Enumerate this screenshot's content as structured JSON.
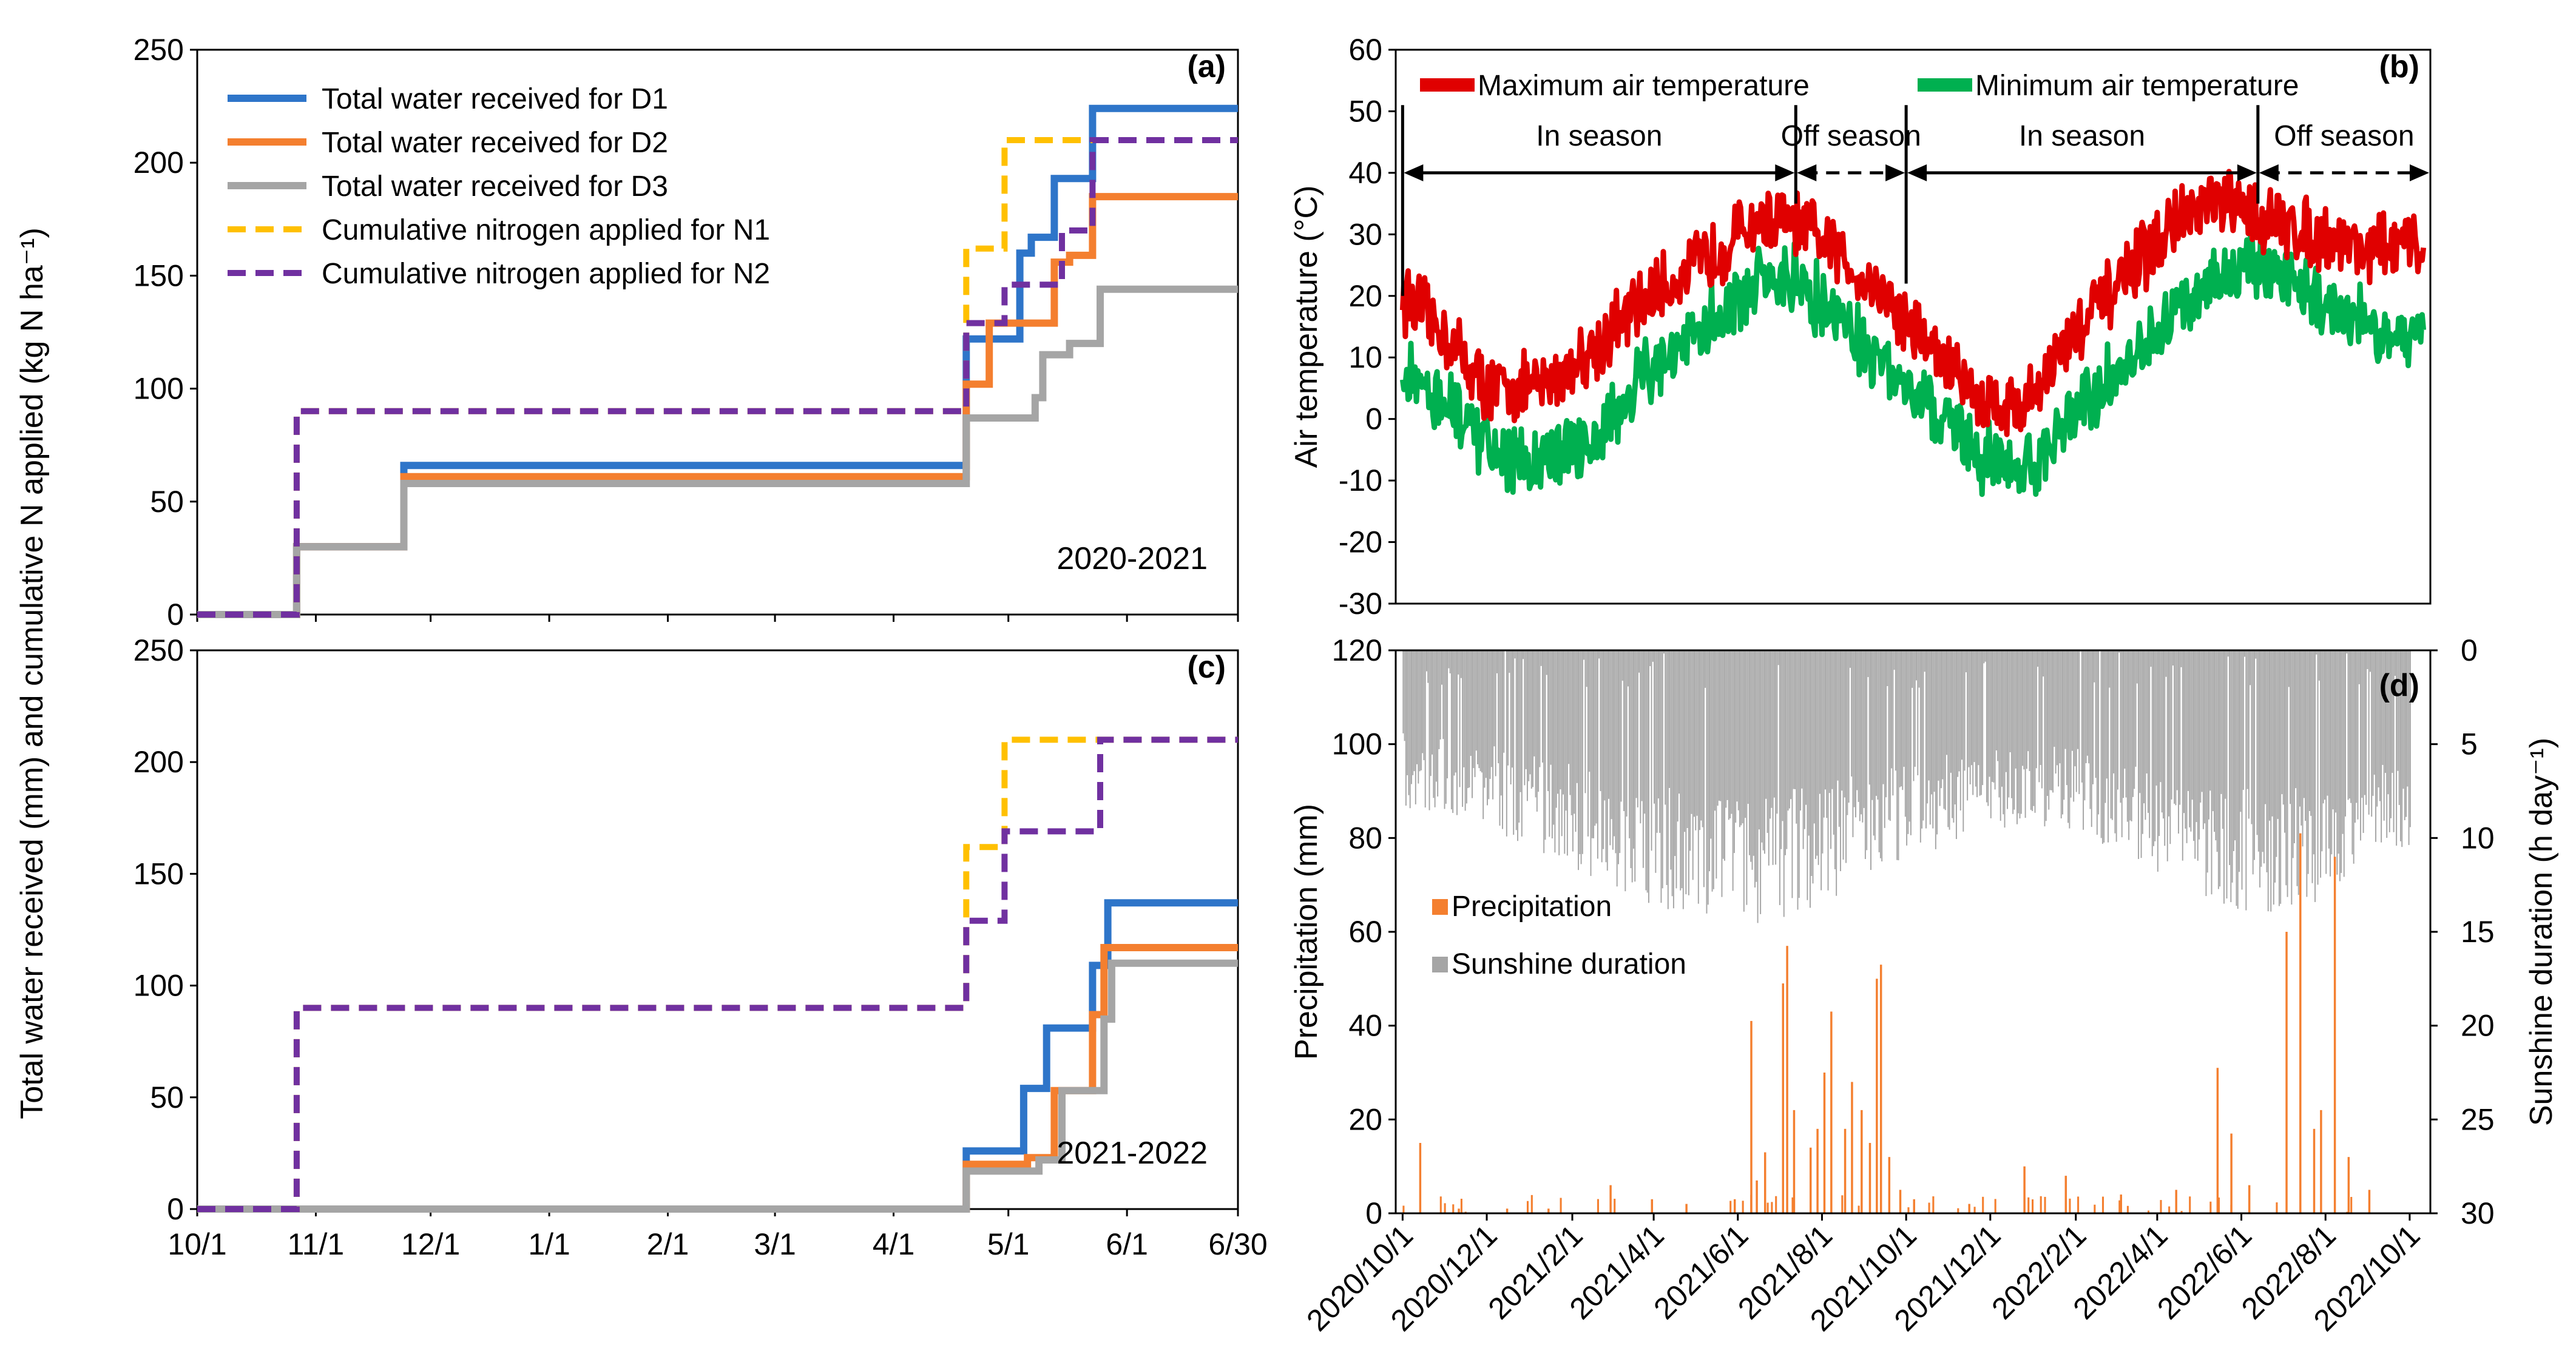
{
  "figure": {
    "shared_ylabel": "Total water received (mm) and cumulative N applied (kg N ha⁻¹)"
  },
  "chart_data": [
    {
      "id": "a",
      "panel_label": "(a)",
      "type": "line",
      "season_label": "2020-2021",
      "x_days": [
        0,
        272
      ],
      "xtick_labels": [
        "10/1",
        "11/1",
        "12/1",
        "1/1",
        "2/1",
        "3/1",
        "4/1",
        "5/1",
        "6/1",
        "6/30"
      ],
      "xtick_days": [
        0,
        31,
        61,
        92,
        123,
        151,
        182,
        212,
        243,
        272
      ],
      "ylim": [
        0,
        250
      ],
      "yticks": [
        0,
        50,
        100,
        150,
        200,
        250
      ],
      "series": [
        {
          "name": "Total water received for D1",
          "color": "#2E75C9",
          "dash": false,
          "points": [
            [
              0,
              0
            ],
            [
              26,
              0
            ],
            [
              26,
              30
            ],
            [
              54,
              30
            ],
            [
              54,
              66
            ],
            [
              201,
              66
            ],
            [
              201,
              122
            ],
            [
              215,
              122
            ],
            [
              215,
              160
            ],
            [
              218,
              160
            ],
            [
              218,
              167
            ],
            [
              224,
              167
            ],
            [
              224,
              193
            ],
            [
              234,
              193
            ],
            [
              234,
              224
            ],
            [
              272,
              224
            ]
          ]
        },
        {
          "name": "Total water received for D2",
          "color": "#F47F2F",
          "dash": false,
          "points": [
            [
              0,
              0
            ],
            [
              26,
              0
            ],
            [
              26,
              30
            ],
            [
              54,
              30
            ],
            [
              54,
              61
            ],
            [
              201,
              61
            ],
            [
              201,
              102
            ],
            [
              207,
              102
            ],
            [
              207,
              129
            ],
            [
              224,
              129
            ],
            [
              224,
              156
            ],
            [
              228,
              156
            ],
            [
              228,
              159
            ],
            [
              234,
              159
            ],
            [
              234,
              185
            ],
            [
              272,
              185
            ]
          ]
        },
        {
          "name": "Total water received for D3",
          "color": "#A5A5A5",
          "dash": false,
          "points": [
            [
              0,
              0
            ],
            [
              26,
              0
            ],
            [
              26,
              30
            ],
            [
              54,
              30
            ],
            [
              54,
              58
            ],
            [
              201,
              58
            ],
            [
              201,
              87
            ],
            [
              219,
              87
            ],
            [
              219,
              96
            ],
            [
              221,
              96
            ],
            [
              221,
              115
            ],
            [
              228,
              115
            ],
            [
              228,
              120
            ],
            [
              236,
              120
            ],
            [
              236,
              144
            ],
            [
              272,
              144
            ]
          ]
        },
        {
          "name": "Cumulative nitrogen applied for N1",
          "color": "#FFC000",
          "dash": true,
          "points": [
            [
              0,
              0
            ],
            [
              26,
              0
            ],
            [
              26,
              90
            ],
            [
              201,
              90
            ],
            [
              201,
              162
            ],
            [
              211,
              162
            ],
            [
              211,
              210
            ],
            [
              272,
              210
            ]
          ]
        },
        {
          "name": "Cumulative nitrogen applied for N2",
          "color": "#7030A0",
          "dash": true,
          "points": [
            [
              0,
              0
            ],
            [
              26,
              0
            ],
            [
              26,
              90
            ],
            [
              201,
              90
            ],
            [
              201,
              129
            ],
            [
              211,
              129
            ],
            [
              211,
              146
            ],
            [
              226,
              146
            ],
            [
              226,
              170
            ],
            [
              234,
              170
            ],
            [
              234,
              210
            ],
            [
              272,
              210
            ]
          ]
        }
      ]
    },
    {
      "id": "b",
      "panel_label": "(b)",
      "type": "line",
      "ylabel": "Air temperature (°C)",
      "ylim": [
        -30,
        60
      ],
      "yticks": [
        -30,
        -20,
        -10,
        0,
        10,
        20,
        30,
        40,
        50,
        60
      ],
      "x_days": [
        -5,
        745
      ],
      "legend": [
        "Maximum air temperature",
        "Minimum air temperature"
      ],
      "series_colors": [
        "#E00000",
        "#00B050"
      ],
      "series": [
        {
          "name": "Maximum air temperature",
          "color": "#E00000",
          "anchors": [
            [
              0,
              20
            ],
            [
              30,
              14
            ],
            [
              60,
              5
            ],
            [
              100,
              5
            ],
            [
              140,
              12
            ],
            [
              180,
              20
            ],
            [
              220,
              26
            ],
            [
              255,
              32
            ],
            [
              280,
              32
            ],
            [
              310,
              28
            ],
            [
              350,
              20
            ],
            [
              390,
              10
            ],
            [
              420,
              3
            ],
            [
              450,
              2
            ],
            [
              480,
              12
            ],
            [
              520,
              22
            ],
            [
              560,
              32
            ],
            [
              590,
              35
            ],
            [
              620,
              33
            ],
            [
              660,
              30
            ],
            [
              700,
              28
            ],
            [
              740,
              28
            ]
          ]
        },
        {
          "name": "Minimum air temperature",
          "color": "#00B050",
          "anchors": [
            [
              0,
              8
            ],
            [
              30,
              3
            ],
            [
              60,
              -5
            ],
            [
              100,
              -8
            ],
            [
              140,
              -2
            ],
            [
              180,
              8
            ],
            [
              220,
              15
            ],
            [
              255,
              22
            ],
            [
              280,
              23
            ],
            [
              310,
              18
            ],
            [
              350,
              8
            ],
            [
              390,
              0
            ],
            [
              420,
              -6
            ],
            [
              450,
              -9
            ],
            [
              480,
              -1
            ],
            [
              520,
              8
            ],
            [
              560,
              18
            ],
            [
              590,
              23
            ],
            [
              620,
              25
            ],
            [
              660,
              20
            ],
            [
              700,
              15
            ],
            [
              740,
              14
            ]
          ]
        }
      ],
      "annotations": [
        {
          "text": "In season",
          "from": 0,
          "to": 285,
          "dash": false
        },
        {
          "text": "Off season",
          "from": 285,
          "to": 365,
          "dash": true
        },
        {
          "text": "In season",
          "from": 365,
          "to": 620,
          "dash": false
        },
        {
          "text": "Off season",
          "from": 620,
          "to": 745,
          "dash": true
        }
      ]
    },
    {
      "id": "c",
      "panel_label": "(c)",
      "type": "line",
      "season_label": "2021-2022",
      "x_days": [
        0,
        272
      ],
      "xtick_labels": [
        "10/1",
        "11/1",
        "12/1",
        "1/1",
        "2/1",
        "3/1",
        "4/1",
        "5/1",
        "6/1",
        "6/30"
      ],
      "xtick_days": [
        0,
        31,
        61,
        92,
        123,
        151,
        182,
        212,
        243,
        272
      ],
      "ylim": [
        0,
        250
      ],
      "yticks": [
        0,
        50,
        100,
        150,
        200,
        250
      ],
      "series": [
        {
          "name": "D1",
          "color": "#2E75C9",
          "dash": false,
          "points": [
            [
              0,
              0
            ],
            [
              201,
              0
            ],
            [
              201,
              26
            ],
            [
              216,
              26
            ],
            [
              216,
              54
            ],
            [
              222,
              54
            ],
            [
              222,
              81
            ],
            [
              234,
              81
            ],
            [
              234,
              109
            ],
            [
              238,
              109
            ],
            [
              238,
              137
            ],
            [
              272,
              137
            ]
          ]
        },
        {
          "name": "D2",
          "color": "#F47F2F",
          "dash": false,
          "points": [
            [
              0,
              0
            ],
            [
              201,
              0
            ],
            [
              201,
              20
            ],
            [
              217,
              20
            ],
            [
              217,
              23
            ],
            [
              224,
              23
            ],
            [
              224,
              53
            ],
            [
              234,
              53
            ],
            [
              234,
              87
            ],
            [
              237,
              87
            ],
            [
              237,
              117
            ],
            [
              272,
              117
            ]
          ]
        },
        {
          "name": "D3",
          "color": "#A5A5A5",
          "dash": false,
          "points": [
            [
              0,
              0
            ],
            [
              201,
              0
            ],
            [
              201,
              17
            ],
            [
              220,
              17
            ],
            [
              220,
              22
            ],
            [
              226,
              22
            ],
            [
              226,
              53
            ],
            [
              237,
              53
            ],
            [
              237,
              85
            ],
            [
              239,
              85
            ],
            [
              239,
              110
            ],
            [
              272,
              110
            ]
          ]
        },
        {
          "name": "N1",
          "color": "#FFC000",
          "dash": true,
          "points": [
            [
              0,
              0
            ],
            [
              26,
              0
            ],
            [
              26,
              90
            ],
            [
              201,
              90
            ],
            [
              201,
              162
            ],
            [
              211,
              162
            ],
            [
              211,
              210
            ],
            [
              272,
              210
            ]
          ]
        },
        {
          "name": "N2",
          "color": "#7030A0",
          "dash": true,
          "points": [
            [
              0,
              0
            ],
            [
              26,
              0
            ],
            [
              26,
              90
            ],
            [
              201,
              90
            ],
            [
              201,
              129
            ],
            [
              211,
              129
            ],
            [
              211,
              169
            ],
            [
              236,
              169
            ],
            [
              236,
              210
            ],
            [
              272,
              210
            ]
          ]
        }
      ]
    },
    {
      "id": "d",
      "panel_label": "(d)",
      "type": "bar",
      "ylabel_left": "Precipitation (mm)",
      "ylabel_right": "Sunshine duration (h day⁻¹)",
      "ylim_left": [
        0,
        120
      ],
      "yticks_left": [
        0,
        20,
        40,
        60,
        80,
        100,
        120
      ],
      "ylim_right_inverted": [
        0,
        30
      ],
      "yticks_right": [
        0,
        5,
        10,
        15,
        20,
        25,
        30
      ],
      "x_days": [
        -5,
        745
      ],
      "xtick_labels": [
        "2020/10/1",
        "2020/12/1",
        "2021/2/1",
        "2021/4/1",
        "2021/6/1",
        "2021/8/1",
        "2021/10/1",
        "2021/12/1",
        "2022/2/1",
        "2022/4/1",
        "2022/6/1",
        "2022/8/1",
        "2022/10/1"
      ],
      "xtick_days": [
        0,
        61,
        123,
        182,
        243,
        304,
        365,
        426,
        488,
        547,
        608,
        669,
        730
      ],
      "legend": [
        "Precipitation",
        "Sunshine duration"
      ],
      "series_colors": [
        "#F47F2F",
        "#A5A5A5"
      ],
      "precipitation_events": [
        [
          12,
          15
        ],
        [
          40,
          1
        ],
        [
          75,
          1
        ],
        [
          105,
          1
        ],
        [
          150,
          6
        ],
        [
          180,
          3
        ],
        [
          205,
          2
        ],
        [
          240,
          3
        ],
        [
          252,
          41
        ],
        [
          256,
          7
        ],
        [
          262,
          13
        ],
        [
          275,
          49
        ],
        [
          278,
          57
        ],
        [
          283,
          22
        ],
        [
          295,
          14
        ],
        [
          300,
          18
        ],
        [
          305,
          30
        ],
        [
          310,
          43
        ],
        [
          320,
          18
        ],
        [
          325,
          28
        ],
        [
          332,
          22
        ],
        [
          338,
          15
        ],
        [
          343,
          50
        ],
        [
          346,
          53
        ],
        [
          352,
          12
        ],
        [
          360,
          5
        ],
        [
          370,
          3
        ],
        [
          410,
          2
        ],
        [
          450,
          10
        ],
        [
          480,
          8
        ],
        [
          520,
          4
        ],
        [
          560,
          5
        ],
        [
          590,
          31
        ],
        [
          600,
          17
        ],
        [
          613,
          6
        ],
        [
          640,
          60
        ],
        [
          650,
          81
        ],
        [
          660,
          18
        ],
        [
          665,
          22
        ],
        [
          675,
          76
        ],
        [
          685,
          12
        ],
        [
          700,
          5
        ]
      ],
      "sunshine_profile": [
        [
          0,
          8
        ],
        [
          60,
          9
        ],
        [
          120,
          11
        ],
        [
          180,
          13
        ],
        [
          240,
          14.5
        ],
        [
          300,
          13
        ],
        [
          360,
          11
        ],
        [
          420,
          9
        ],
        [
          480,
          9
        ],
        [
          540,
          11
        ],
        [
          600,
          13.5
        ],
        [
          660,
          13
        ],
        [
          710,
          10
        ],
        [
          730,
          10
        ]
      ]
    }
  ]
}
